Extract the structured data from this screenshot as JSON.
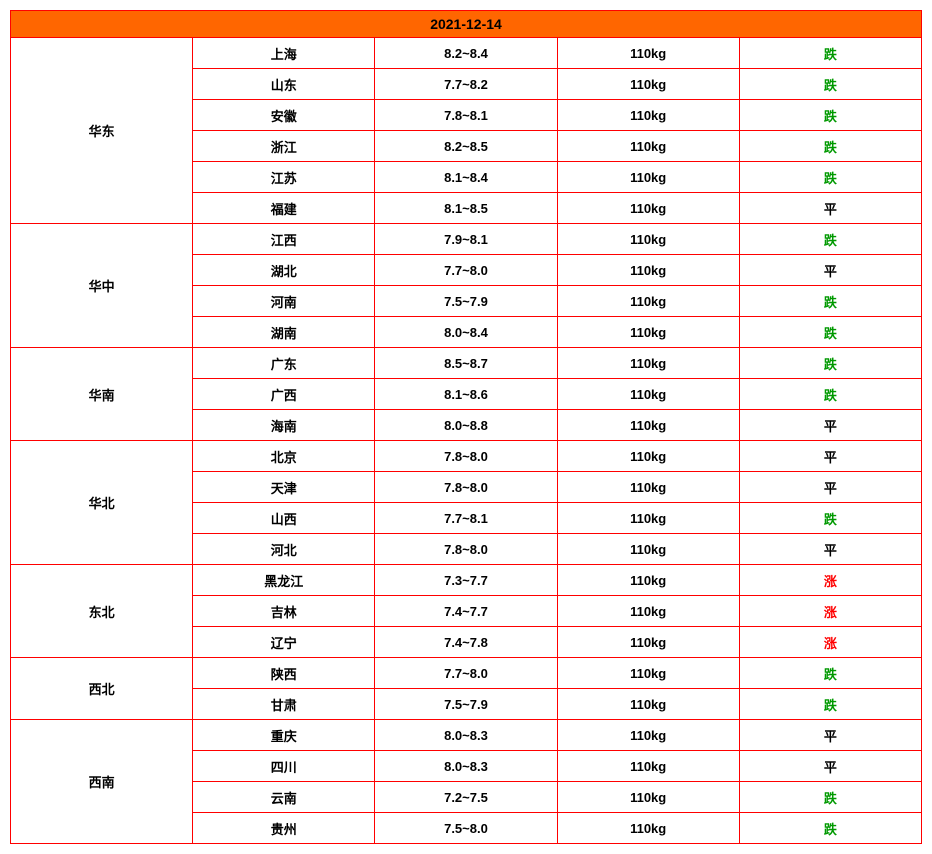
{
  "header_date": "2021-12-14",
  "colors": {
    "border": "#ff0000",
    "header_bg": "#ff6600",
    "text": "#000000",
    "trend_down": "#009900",
    "trend_up": "#ff0000",
    "trend_flat": "#000000"
  },
  "trend_labels": {
    "down": "跌",
    "flat": "平",
    "up": "涨"
  },
  "regions": [
    {
      "name": "华东",
      "rows": [
        {
          "province": "上海",
          "price": "8.2~8.4",
          "weight": "110kg",
          "trend": "down"
        },
        {
          "province": "山东",
          "price": "7.7~8.2",
          "weight": "110kg",
          "trend": "down"
        },
        {
          "province": "安徽",
          "price": "7.8~8.1",
          "weight": "110kg",
          "trend": "down"
        },
        {
          "province": "浙江",
          "price": "8.2~8.5",
          "weight": "110kg",
          "trend": "down"
        },
        {
          "province": "江苏",
          "price": "8.1~8.4",
          "weight": "110kg",
          "trend": "down"
        },
        {
          "province": "福建",
          "price": "8.1~8.5",
          "weight": "110kg",
          "trend": "flat"
        }
      ]
    },
    {
      "name": "华中",
      "rows": [
        {
          "province": "江西",
          "price": "7.9~8.1",
          "weight": "110kg",
          "trend": "down"
        },
        {
          "province": "湖北",
          "price": "7.7~8.0",
          "weight": "110kg",
          "trend": "flat"
        },
        {
          "province": "河南",
          "price": "7.5~7.9",
          "weight": "110kg",
          "trend": "down"
        },
        {
          "province": "湖南",
          "price": "8.0~8.4",
          "weight": "110kg",
          "trend": "down"
        }
      ]
    },
    {
      "name": "华南",
      "rows": [
        {
          "province": "广东",
          "price": "8.5~8.7",
          "weight": "110kg",
          "trend": "down"
        },
        {
          "province": "广西",
          "price": "8.1~8.6",
          "weight": "110kg",
          "trend": "down"
        },
        {
          "province": "海南",
          "price": "8.0~8.8",
          "weight": "110kg",
          "trend": "flat"
        }
      ]
    },
    {
      "name": "华北",
      "rows": [
        {
          "province": "北京",
          "price": "7.8~8.0",
          "weight": "110kg",
          "trend": "flat"
        },
        {
          "province": "天津",
          "price": "7.8~8.0",
          "weight": "110kg",
          "trend": "flat"
        },
        {
          "province": "山西",
          "price": "7.7~8.1",
          "weight": "110kg",
          "trend": "down"
        },
        {
          "province": "河北",
          "price": "7.8~8.0",
          "weight": "110kg",
          "trend": "flat"
        }
      ]
    },
    {
      "name": "东北",
      "rows": [
        {
          "province": "黑龙江",
          "price": "7.3~7.7",
          "weight": "110kg",
          "trend": "up"
        },
        {
          "province": "吉林",
          "price": "7.4~7.7",
          "weight": "110kg",
          "trend": "up"
        },
        {
          "province": "辽宁",
          "price": "7.4~7.8",
          "weight": "110kg",
          "trend": "up"
        }
      ]
    },
    {
      "name": "西北",
      "rows": [
        {
          "province": "陕西",
          "price": "7.7~8.0",
          "weight": "110kg",
          "trend": "down"
        },
        {
          "province": "甘肃",
          "price": "7.5~7.9",
          "weight": "110kg",
          "trend": "down"
        }
      ]
    },
    {
      "name": "西南",
      "rows": [
        {
          "province": "重庆",
          "price": "8.0~8.3",
          "weight": "110kg",
          "trend": "flat"
        },
        {
          "province": "四川",
          "price": "8.0~8.3",
          "weight": "110kg",
          "trend": "flat"
        },
        {
          "province": "云南",
          "price": "7.2~7.5",
          "weight": "110kg",
          "trend": "down"
        },
        {
          "province": "贵州",
          "price": "7.5~8.0",
          "weight": "110kg",
          "trend": "down"
        }
      ]
    }
  ]
}
